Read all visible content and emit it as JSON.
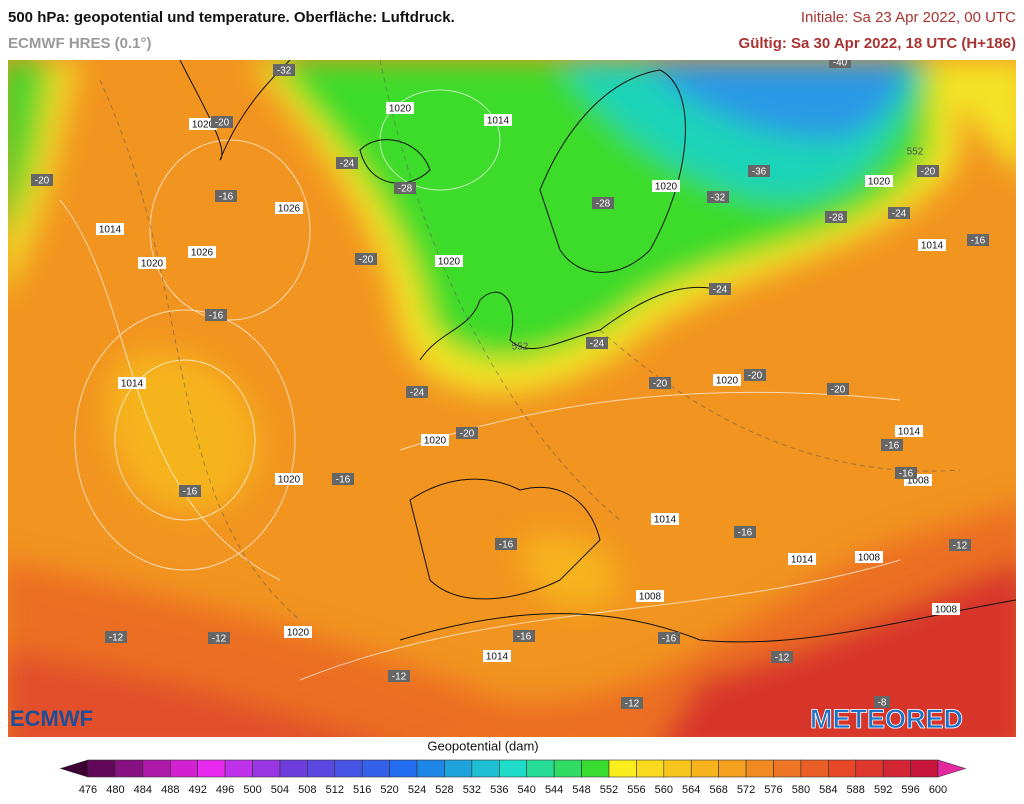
{
  "header": {
    "title": "500 hPa: geopotential und temperature. Oberfläche: Luftdruck.",
    "model": "ECMWF HRES (0.1°)",
    "initial": "Initiale: Sa 23 Apr 2022, 00 UTC",
    "valid": "Gültig: Sa 30 Apr 2022, 18 UTC (H+186)"
  },
  "map": {
    "pressure_labels": [
      "1020",
      "1014",
      "1020",
      "1026",
      "1014",
      "1026",
      "1020",
      "1020",
      "1020",
      "1020",
      "1014",
      "1014",
      "1020",
      "1020",
      "1020",
      "1014",
      "1008",
      "1014",
      "1014",
      "1008",
      "1008",
      "1008",
      "1020",
      "1014"
    ],
    "temperature_labels": [
      "-32",
      "-20",
      "-20",
      "-24",
      "-28",
      "-16",
      "-20",
      "-16",
      "-28",
      "-32",
      "-36",
      "-28",
      "-24",
      "-20",
      "-16",
      "-24",
      "-24",
      "-20",
      "-20",
      "-20",
      "-24",
      "-20",
      "-16",
      "-16",
      "-16",
      "-16",
      "-16",
      "-16",
      "-12",
      "-16",
      "-16",
      "-12",
      "-12",
      "-12",
      "-12",
      "-12",
      "-8",
      "-40"
    ],
    "contour_labels": [
      "552",
      "552"
    ]
  },
  "logos": {
    "left": "ECMWF",
    "right": "METEORED"
  },
  "colorbar": {
    "title": "Geopotential (dam)",
    "ticks": [
      "476",
      "480",
      "484",
      "488",
      "492",
      "496",
      "500",
      "504",
      "508",
      "512",
      "516",
      "520",
      "524",
      "528",
      "532",
      "536",
      "540",
      "544",
      "548",
      "552",
      "556",
      "560",
      "564",
      "568",
      "572",
      "576",
      "580",
      "584",
      "588",
      "592",
      "596",
      "600"
    ]
  }
}
